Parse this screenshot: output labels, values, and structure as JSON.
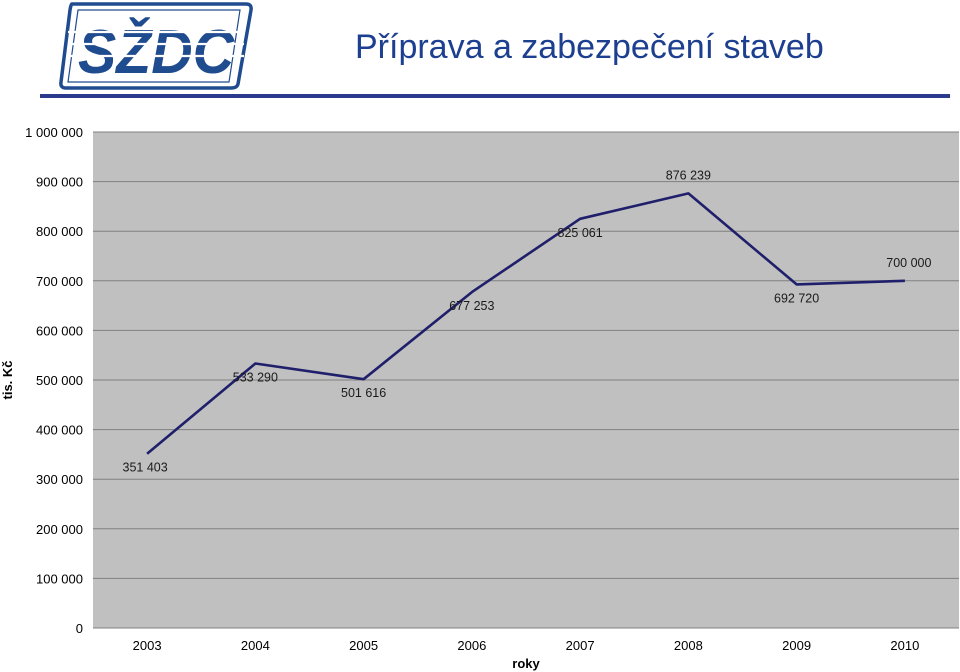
{
  "header": {
    "logo_text": "SŽDC",
    "title": "Příprava a zabezpečení staveb"
  },
  "colors": {
    "brand": "#1d3f8f",
    "logo_blue": "#1f4c8f",
    "plot_background": "#c0c0c0",
    "gridline": "#808080",
    "line": "#1f1f6b"
  },
  "chart_data": {
    "type": "line",
    "title": "",
    "xlabel": "roky",
    "ylabel": "tis. Kč",
    "x": [
      "2003",
      "2004",
      "2005",
      "2006",
      "2007",
      "2008",
      "2009",
      "2010"
    ],
    "series": [
      {
        "values": [
          351403,
          533290,
          501616,
          677253,
          825061,
          876239,
          692720,
          700000
        ],
        "labels": [
          "351 403",
          "533 290",
          "501 616",
          "677 253",
          "825 061",
          "876 239",
          "692 720",
          "700 000"
        ]
      }
    ],
    "ylim": [
      0,
      1000000
    ],
    "yticks": [
      0,
      100000,
      200000,
      300000,
      400000,
      500000,
      600000,
      700000,
      800000,
      900000,
      1000000
    ],
    "ytick_labels": [
      "0",
      "100 000",
      "200 000",
      "300 000",
      "400 000",
      "500 000",
      "600 000",
      "700 000",
      "800 000",
      "900 000",
      "1 000 000"
    ],
    "grid": true,
    "legend": "none"
  }
}
